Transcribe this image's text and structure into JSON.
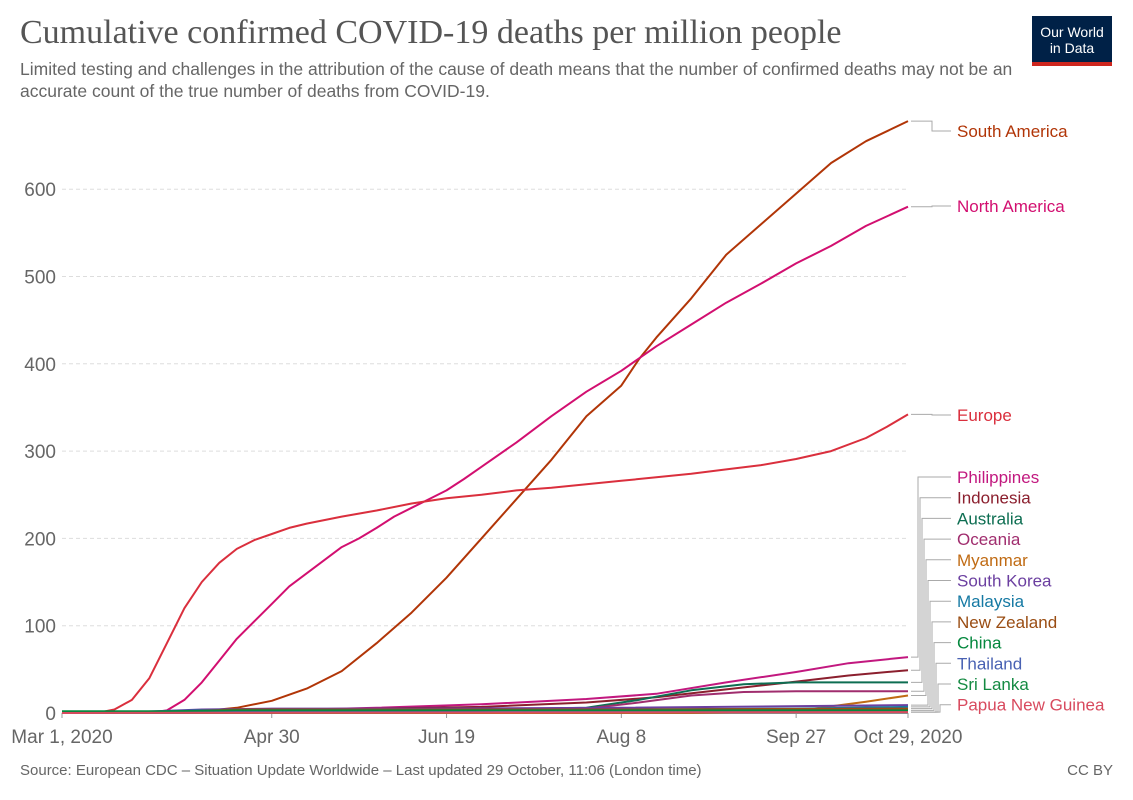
{
  "header": {
    "title": "Cumulative confirmed COVID-19 deaths per million people",
    "subtitle": "Limited testing and challenges in the attribution of the cause of death means that the number of confirmed deaths may not be an accurate count of the true number of deaths from COVID-19.",
    "logo_line1": "Our World",
    "logo_line2": "in Data"
  },
  "footer": {
    "source": "Source: European CDC – Situation Update Worldwide – Last updated 29 October, 11:06 (London time)",
    "license": "CC BY"
  },
  "chart_data": {
    "type": "line",
    "title": "Cumulative confirmed COVID-19 deaths per million people",
    "xlabel": "",
    "ylabel": "",
    "x_unit": "days since Mar 1, 2020",
    "xlim": [
      0,
      242
    ],
    "ylim": [
      0,
      680
    ],
    "y_ticks": [
      0,
      100,
      200,
      300,
      400,
      500,
      600
    ],
    "x_ticks": [
      {
        "day": 0,
        "label": "Mar 1, 2020"
      },
      {
        "day": 60,
        "label": "Apr 30"
      },
      {
        "day": 110,
        "label": "Jun 19"
      },
      {
        "day": 160,
        "label": "Aug 8"
      },
      {
        "day": 210,
        "label": "Sep 27"
      },
      {
        "day": 242,
        "label": "Oct 29, 2020"
      }
    ],
    "grid": true,
    "legend": "right end labels",
    "series": [
      {
        "name": "South America",
        "color": "#b13507",
        "points": [
          [
            0,
            0
          ],
          [
            30,
            0
          ],
          [
            40,
            2
          ],
          [
            50,
            6
          ],
          [
            60,
            14
          ],
          [
            70,
            28
          ],
          [
            80,
            48
          ],
          [
            90,
            80
          ],
          [
            100,
            115
          ],
          [
            110,
            155
          ],
          [
            120,
            200
          ],
          [
            130,
            245
          ],
          [
            140,
            290
          ],
          [
            150,
            340
          ],
          [
            160,
            375
          ],
          [
            165,
            405
          ],
          [
            170,
            430
          ],
          [
            180,
            475
          ],
          [
            190,
            525
          ],
          [
            200,
            560
          ],
          [
            210,
            595
          ],
          [
            220,
            630
          ],
          [
            230,
            655
          ],
          [
            242,
            678
          ]
        ]
      },
      {
        "name": "North America",
        "color": "#d20f70",
        "points": [
          [
            0,
            0
          ],
          [
            25,
            0
          ],
          [
            30,
            3
          ],
          [
            35,
            15
          ],
          [
            40,
            35
          ],
          [
            45,
            60
          ],
          [
            50,
            85
          ],
          [
            55,
            105
          ],
          [
            60,
            125
          ],
          [
            65,
            145
          ],
          [
            70,
            160
          ],
          [
            75,
            175
          ],
          [
            80,
            190
          ],
          [
            85,
            200
          ],
          [
            90,
            212
          ],
          [
            95,
            225
          ],
          [
            100,
            235
          ],
          [
            105,
            245
          ],
          [
            110,
            255
          ],
          [
            115,
            268
          ],
          [
            120,
            282
          ],
          [
            130,
            310
          ],
          [
            140,
            340
          ],
          [
            150,
            368
          ],
          [
            160,
            392
          ],
          [
            170,
            420
          ],
          [
            180,
            445
          ],
          [
            190,
            470
          ],
          [
            200,
            492
          ],
          [
            210,
            515
          ],
          [
            220,
            535
          ],
          [
            230,
            558
          ],
          [
            242,
            580
          ]
        ]
      },
      {
        "name": "Europe",
        "color": "#da2f3d",
        "points": [
          [
            0,
            0
          ],
          [
            10,
            0
          ],
          [
            15,
            4
          ],
          [
            20,
            15
          ],
          [
            25,
            40
          ],
          [
            30,
            80
          ],
          [
            35,
            120
          ],
          [
            40,
            150
          ],
          [
            45,
            172
          ],
          [
            50,
            188
          ],
          [
            55,
            198
          ],
          [
            60,
            205
          ],
          [
            65,
            212
          ],
          [
            70,
            217
          ],
          [
            75,
            221
          ],
          [
            80,
            225
          ],
          [
            90,
            232
          ],
          [
            100,
            240
          ],
          [
            110,
            246
          ],
          [
            120,
            250
          ],
          [
            130,
            255
          ],
          [
            140,
            258
          ],
          [
            150,
            262
          ],
          [
            160,
            266
          ],
          [
            170,
            270
          ],
          [
            180,
            274
          ],
          [
            190,
            279
          ],
          [
            200,
            284
          ],
          [
            210,
            291
          ],
          [
            220,
            300
          ],
          [
            230,
            315
          ],
          [
            236,
            328
          ],
          [
            242,
            342
          ]
        ]
      },
      {
        "name": "Philippines",
        "color": "#c2187f",
        "points": [
          [
            0,
            0
          ],
          [
            30,
            2
          ],
          [
            60,
            3
          ],
          [
            90,
            6
          ],
          [
            120,
            10
          ],
          [
            150,
            16
          ],
          [
            170,
            22
          ],
          [
            190,
            35
          ],
          [
            210,
            47
          ],
          [
            225,
            57
          ],
          [
            242,
            64
          ]
        ]
      },
      {
        "name": "Indonesia",
        "color": "#8b1f2e",
        "points": [
          [
            0,
            0
          ],
          [
            30,
            1
          ],
          [
            60,
            3
          ],
          [
            90,
            5
          ],
          [
            120,
            7
          ],
          [
            150,
            12
          ],
          [
            170,
            18
          ],
          [
            190,
            27
          ],
          [
            210,
            36
          ],
          [
            225,
            43
          ],
          [
            242,
            49
          ]
        ]
      },
      {
        "name": "Australia",
        "color": "#0e6e52",
        "points": [
          [
            0,
            0
          ],
          [
            120,
            4
          ],
          [
            150,
            6
          ],
          [
            165,
            15
          ],
          [
            180,
            26
          ],
          [
            195,
            33
          ],
          [
            210,
            35
          ],
          [
            242,
            35
          ]
        ]
      },
      {
        "name": "Oceania",
        "color": "#a02d6e",
        "points": [
          [
            0,
            0
          ],
          [
            120,
            3
          ],
          [
            150,
            5
          ],
          [
            165,
            12
          ],
          [
            180,
            20
          ],
          [
            195,
            24
          ],
          [
            210,
            25
          ],
          [
            242,
            25
          ]
        ]
      },
      {
        "name": "Myanmar",
        "color": "#c06b14",
        "points": [
          [
            0,
            0
          ],
          [
            180,
            0
          ],
          [
            200,
            1
          ],
          [
            215,
            5
          ],
          [
            230,
            13
          ],
          [
            242,
            20
          ]
        ]
      },
      {
        "name": "South Korea",
        "color": "#6b3fa0",
        "points": [
          [
            0,
            0
          ],
          [
            20,
            1
          ],
          [
            40,
            4
          ],
          [
            60,
            5
          ],
          [
            100,
            5
          ],
          [
            160,
            6
          ],
          [
            242,
            9
          ]
        ]
      },
      {
        "name": "Malaysia",
        "color": "#1579a3",
        "points": [
          [
            0,
            0
          ],
          [
            20,
            1
          ],
          [
            40,
            3
          ],
          [
            60,
            3
          ],
          [
            160,
            4
          ],
          [
            210,
            5
          ],
          [
            242,
            7
          ]
        ]
      },
      {
        "name": "New Zealand",
        "color": "#9a4d13",
        "points": [
          [
            0,
            0
          ],
          [
            30,
            1
          ],
          [
            50,
            4
          ],
          [
            60,
            4
          ],
          [
            160,
            4
          ],
          [
            242,
            5
          ]
        ]
      },
      {
        "name": "China",
        "color": "#05883e",
        "points": [
          [
            0,
            2
          ],
          [
            30,
            2
          ],
          [
            50,
            3
          ],
          [
            242,
            3
          ]
        ]
      },
      {
        "name": "Thailand",
        "color": "#4962b3",
        "points": [
          [
            0,
            0
          ],
          [
            30,
            0
          ],
          [
            50,
            1
          ],
          [
            242,
            1
          ]
        ]
      },
      {
        "name": "Sri Lanka",
        "color": "#148a42",
        "points": [
          [
            0,
            0
          ],
          [
            242,
            1
          ]
        ]
      },
      {
        "name": "Papua New Guinea",
        "color": "#d84a5e",
        "points": [
          [
            0,
            0
          ],
          [
            242,
            1
          ]
        ]
      }
    ]
  }
}
